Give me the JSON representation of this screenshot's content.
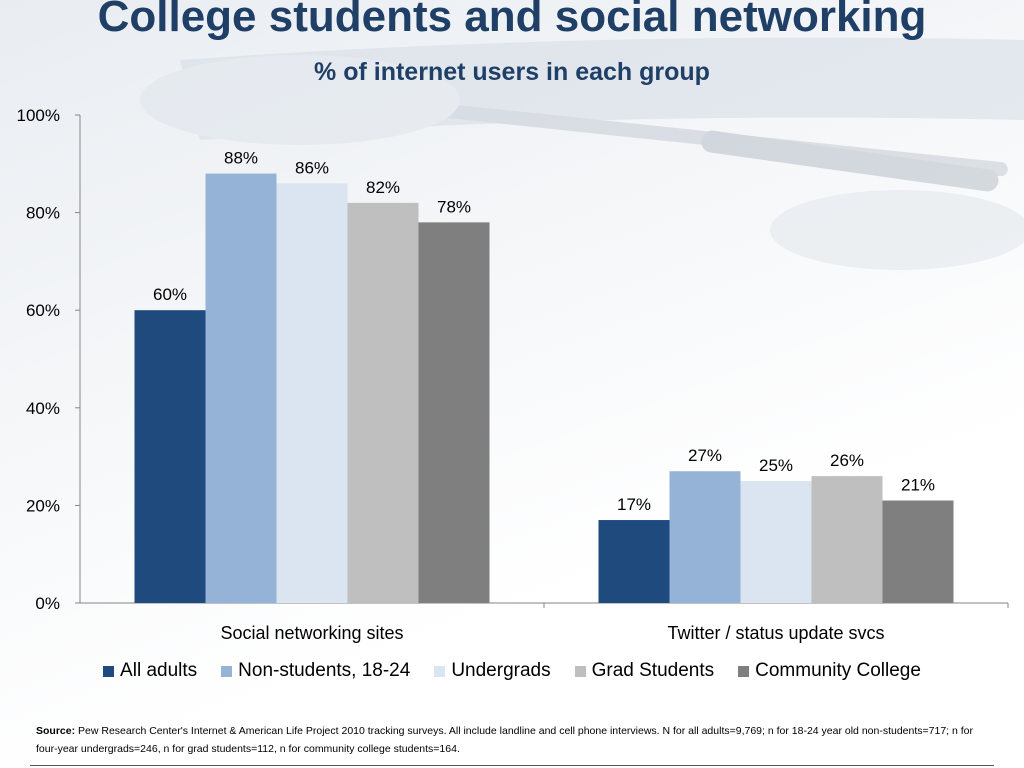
{
  "title": "College students and social networking",
  "subtitle": "% of internet users in each group",
  "chart_data": {
    "type": "bar",
    "categories": [
      "Social networking sites",
      "Twitter / status update svcs"
    ],
    "series": [
      {
        "name": "All adults",
        "values": [
          60,
          17
        ],
        "labels": [
          "60%",
          "17%"
        ],
        "color": "#1f4a7e"
      },
      {
        "name": "Non-students, 18-24",
        "values": [
          88,
          27
        ],
        "labels": [
          "88%",
          "27%"
        ],
        "color": "#95b3d7"
      },
      {
        "name": "Undergrads",
        "values": [
          86,
          25
        ],
        "labels": [
          "86%",
          "25%"
        ],
        "color": "#dbe5f1"
      },
      {
        "name": "Grad Students",
        "values": [
          82,
          26
        ],
        "labels": [
          "82%",
          "26%"
        ],
        "color": "#bfbfbf"
      },
      {
        "name": "Community College",
        "values": [
          78,
          21
        ],
        "labels": [
          "78%",
          "21%"
        ],
        "color": "#7f7f7f"
      }
    ],
    "yticks": [
      "0%",
      "20%",
      "40%",
      "60%",
      "80%",
      "100%"
    ],
    "ylim": [
      0,
      100
    ],
    "grid": false,
    "legend": "bottom"
  },
  "source": {
    "label": "Source:",
    "text": "Pew Research Center's Internet & American Life Project 2010 tracking surveys. All include landline and cell phone interviews. N for all adults=9,769; n for 18-24 year old non-students=717; n for four-year undergrads=246, n for grad students=112, n for community college students=164."
  }
}
